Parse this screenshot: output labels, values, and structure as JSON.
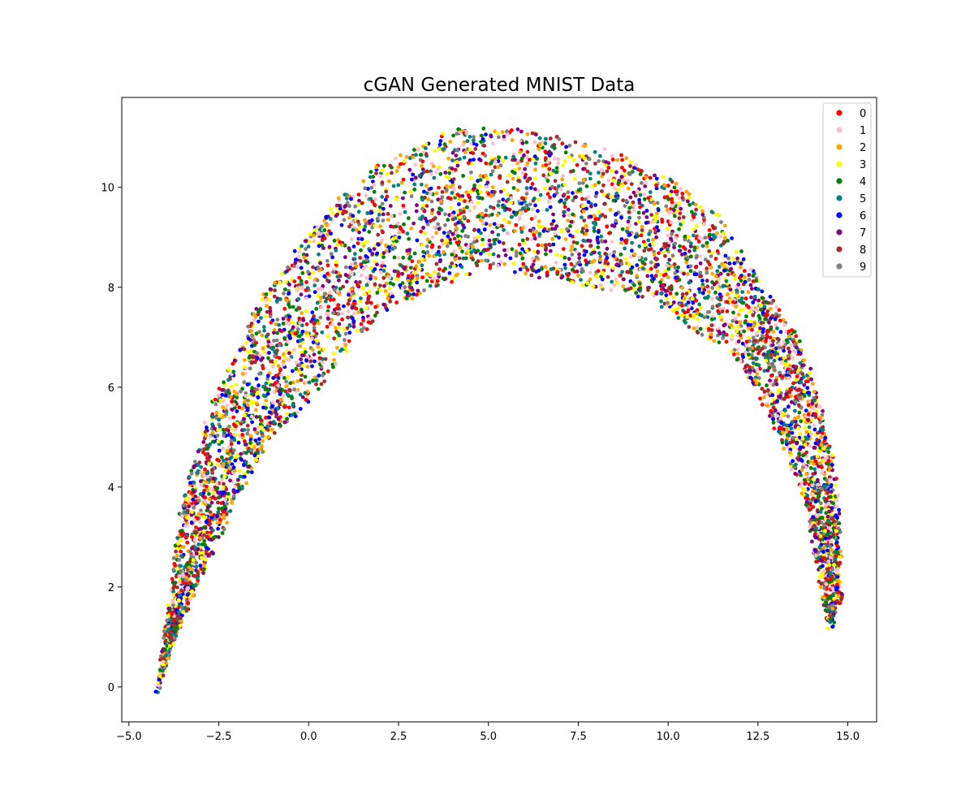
{
  "chart_data": {
    "type": "scatter",
    "title": "cGAN Generated MNIST Data",
    "xlabel": "",
    "ylabel": "",
    "xlim": [
      -5.2,
      15.8
    ],
    "ylim": [
      -0.7,
      11.8
    ],
    "xticks": [
      -5.0,
      -2.5,
      0.0,
      2.5,
      5.0,
      7.5,
      10.0,
      12.5,
      15.0
    ],
    "xtick_labels": [
      "−5.0",
      "−2.5",
      "0.0",
      "2.5",
      "5.0",
      "7.5",
      "10.0",
      "12.5",
      "15.0"
    ],
    "yticks": [
      0,
      2,
      4,
      6,
      8,
      10
    ],
    "ytick_labels": [
      "0",
      "2",
      "4",
      "6",
      "8",
      "10"
    ],
    "grid": false,
    "legend_position": "top-right",
    "shape": "arch",
    "arch_outer": [
      [
        -4.2,
        -0.15
      ],
      [
        -3.5,
        3.8
      ],
      [
        -2.5,
        6.0
      ],
      [
        -1.5,
        7.6
      ],
      [
        -0.5,
        8.6
      ],
      [
        0.7,
        9.7
      ],
      [
        2.0,
        10.5
      ],
      [
        4.0,
        11.15
      ],
      [
        6.0,
        11.15
      ],
      [
        8.0,
        10.9
      ],
      [
        10.0,
        10.2
      ],
      [
        11.5,
        9.4
      ],
      [
        12.5,
        8.2
      ],
      [
        13.5,
        7.1
      ],
      [
        14.3,
        5.6
      ],
      [
        14.75,
        3.8
      ],
      [
        14.8,
        1.8
      ]
    ],
    "arch_inner": [
      [
        -4.0,
        0.6
      ],
      [
        -3.0,
        2.2
      ],
      [
        -2.0,
        3.8
      ],
      [
        -1.0,
        5.0
      ],
      [
        0.0,
        5.7
      ],
      [
        1.0,
        6.7
      ],
      [
        2.0,
        7.5
      ],
      [
        3.5,
        8.0
      ],
      [
        5.0,
        8.4
      ],
      [
        6.5,
        8.2
      ],
      [
        8.0,
        8.0
      ],
      [
        9.5,
        7.8
      ],
      [
        10.8,
        7.1
      ],
      [
        11.8,
        6.7
      ],
      [
        12.8,
        5.5
      ],
      [
        13.8,
        3.8
      ],
      [
        14.5,
        1.1
      ]
    ],
    "points_per_series": 560,
    "series": [
      {
        "name": "0",
        "color": "#ff0000"
      },
      {
        "name": "1",
        "color": "#ffc0cb"
      },
      {
        "name": "2",
        "color": "#ffa500"
      },
      {
        "name": "3",
        "color": "#ffff00"
      },
      {
        "name": "4",
        "color": "#008000"
      },
      {
        "name": "5",
        "color": "#008080"
      },
      {
        "name": "6",
        "color": "#0000ff"
      },
      {
        "name": "7",
        "color": "#800080"
      },
      {
        "name": "8",
        "color": "#a52a2a"
      },
      {
        "name": "9",
        "color": "#808080"
      }
    ]
  }
}
